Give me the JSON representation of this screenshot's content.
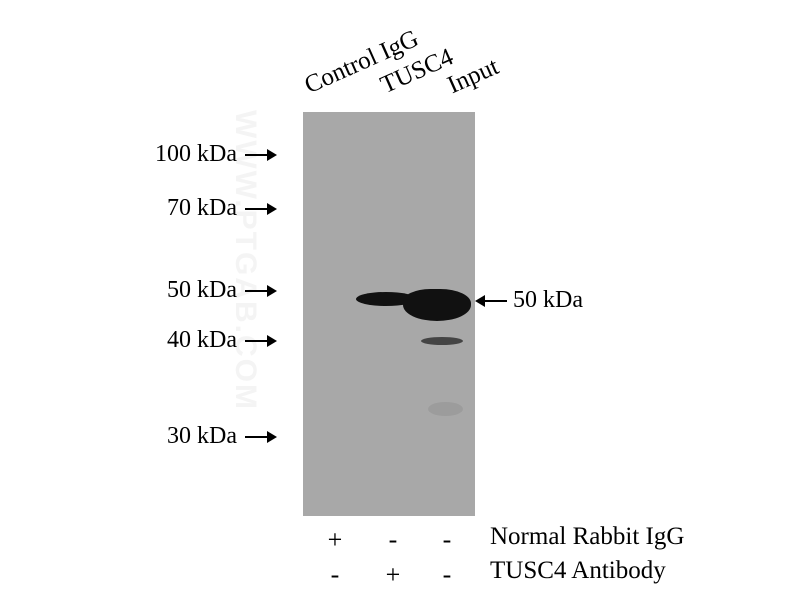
{
  "lanes": [
    "Control IgG",
    "TUSC4",
    "Input"
  ],
  "markers": [
    "100 kDa",
    "70 kDa",
    "50 kDa",
    "40 kDa",
    "30 kDa"
  ],
  "target_label": "50 kDa",
  "watermark": "WWW.PTGAB.COM",
  "conditions": [
    {
      "label": "Normal Rabbit IgG",
      "signs": [
        "+",
        "-",
        "-"
      ]
    },
    {
      "label": "TUSC4 Antibody",
      "signs": [
        "-",
        "+",
        "-"
      ]
    }
  ],
  "colors": {
    "membrane": "#a8a8a8",
    "band": "#111111"
  }
}
